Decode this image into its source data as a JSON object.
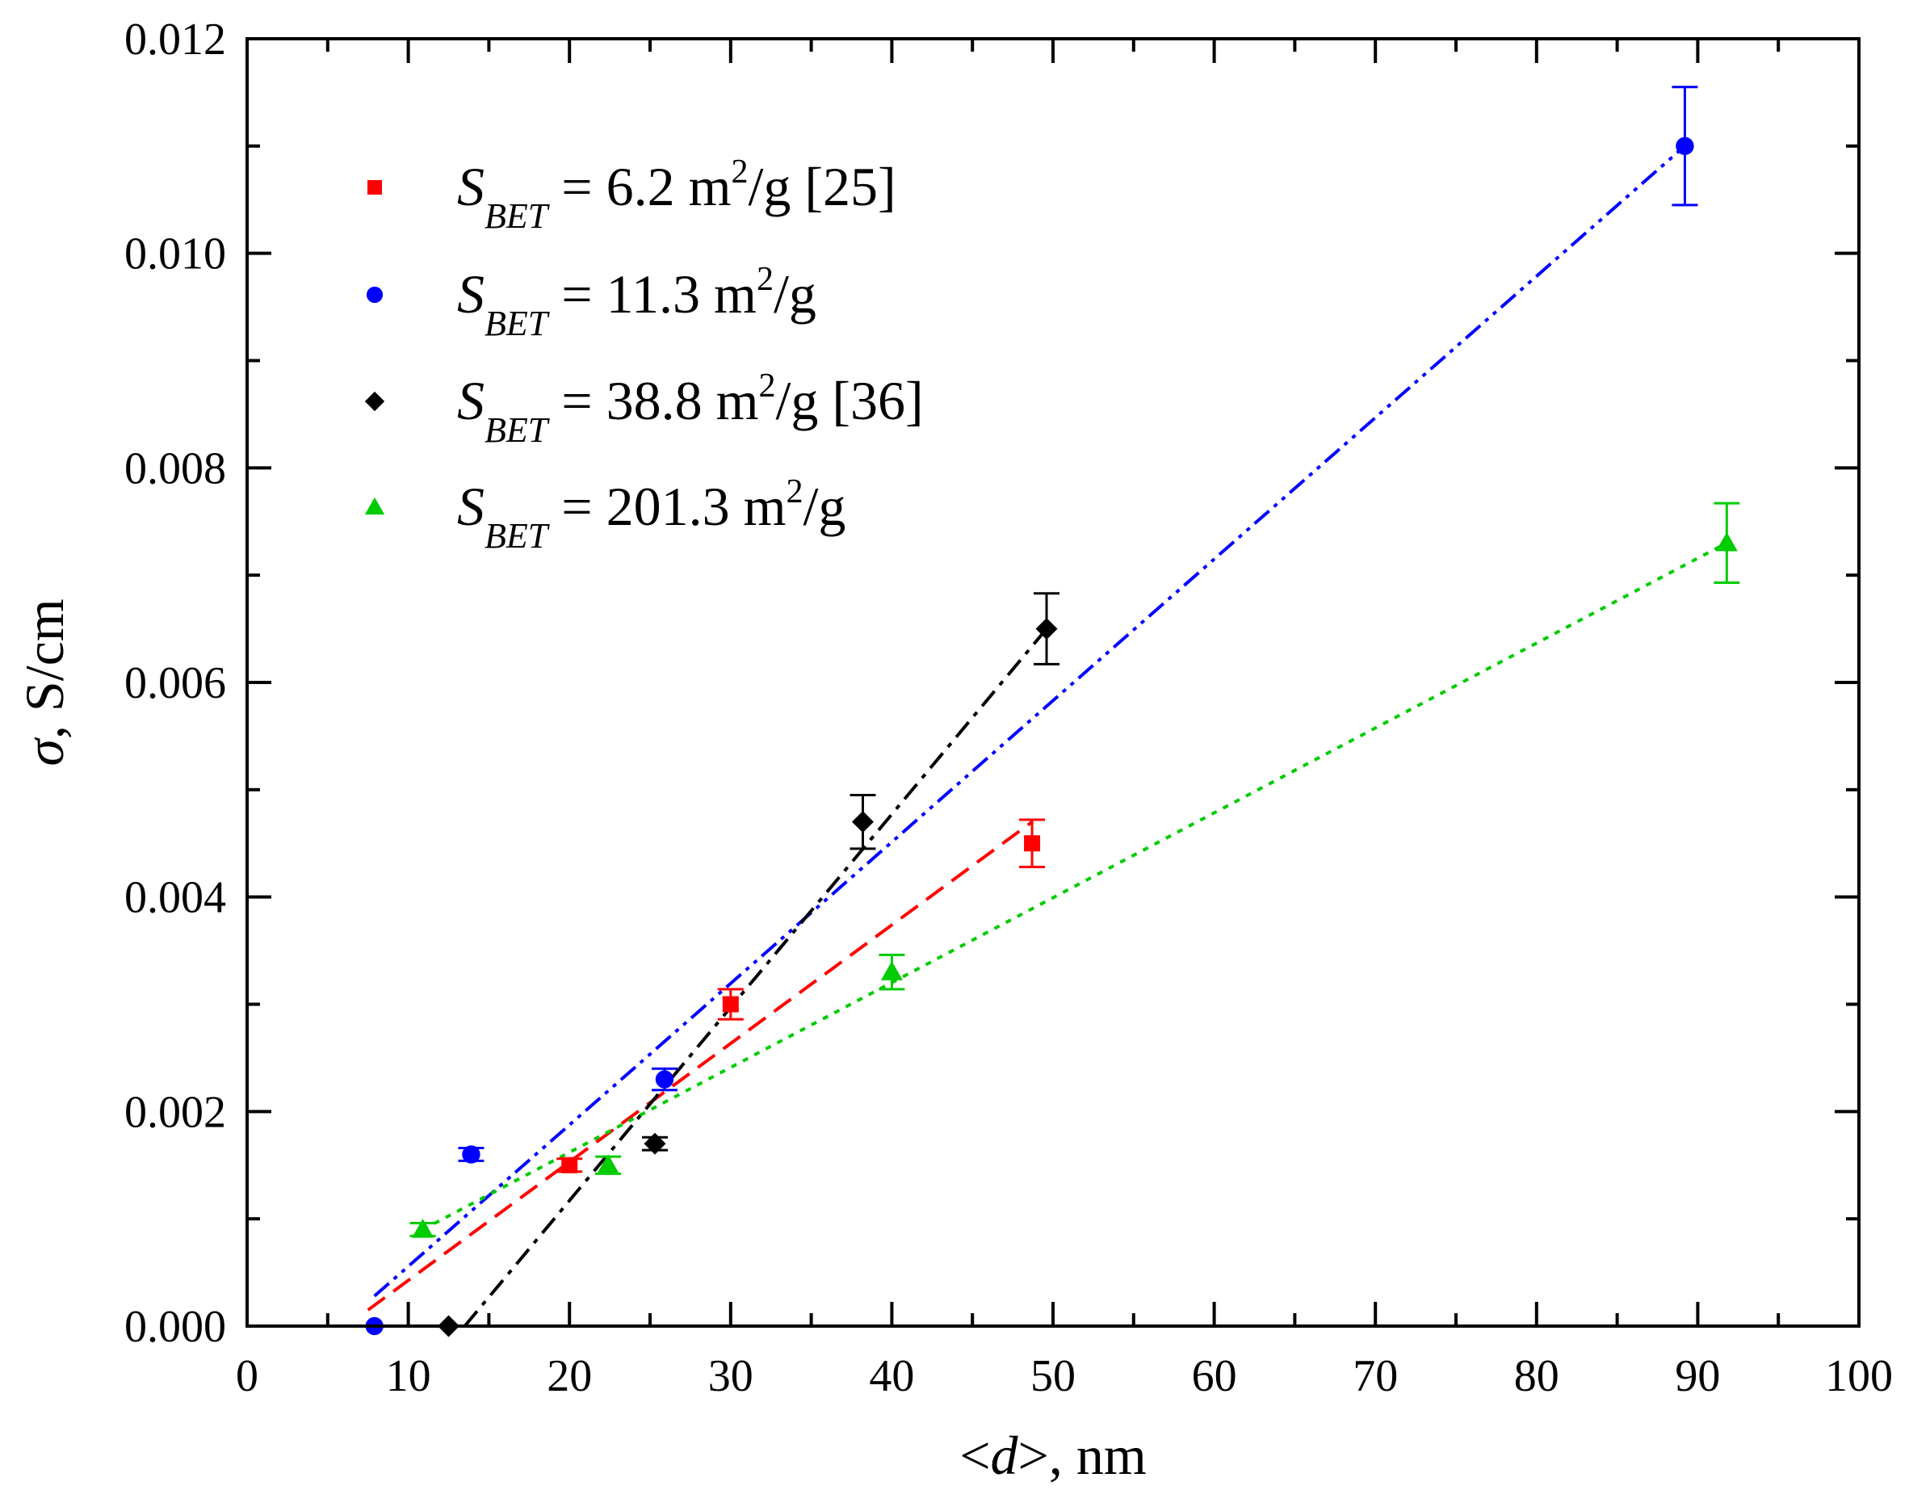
{
  "chart_data": {
    "type": "scatter",
    "title": "",
    "xlabel_prefix": "<",
    "xlabel_var": "d",
    "xlabel_suffix": ">, nm",
    "ylabel_var": "σ",
    "ylabel_unit": ", S/cm",
    "xlim": [
      0,
      100
    ],
    "ylim": [
      0,
      0.012
    ],
    "x_ticks": [
      0,
      10,
      20,
      30,
      40,
      50,
      60,
      70,
      80,
      90,
      100
    ],
    "x_tick_labels": [
      "0",
      "10",
      "20",
      "30",
      "40",
      "50",
      "60",
      "70",
      "80",
      "90",
      "100"
    ],
    "y_ticks": [
      0,
      0.002,
      0.004,
      0.006,
      0.008,
      0.01,
      0.012
    ],
    "y_tick_labels": [
      "0.000",
      "0.002",
      "0.004",
      "0.006",
      "0.008",
      "0.010",
      "0.012"
    ],
    "grid": false,
    "legend_position": "top-left",
    "series": [
      {
        "name": "S_BET = 6.2 m²/g [25]",
        "legend": {
          "var": "S",
          "sub": "BET",
          "pre": " = 6.2 m",
          "sup": "2",
          "post": "/g [25]"
        },
        "color": "#ff0000",
        "marker": "square",
        "line_style": "dashed",
        "x": [
          20,
          30,
          48.7
        ],
        "y": [
          0.0015,
          0.003,
          0.0045
        ],
        "err": [
          6e-05,
          0.00014,
          0.00022
        ],
        "fit": {
          "x": [
            7.5,
            48.7
          ],
          "y": [
            0.00015,
            0.0047
          ]
        }
      },
      {
        "name": "S_BET = 11.3 m²/g",
        "legend": {
          "var": "S",
          "sub": "BET",
          "pre": " = 11.3 m",
          "sup": "2",
          "post": "/g"
        },
        "color": "#0000ff",
        "marker": "circle",
        "line_style": "dash-dot-dot",
        "x": [
          7.9,
          13.9,
          25.9,
          89.2
        ],
        "y": [
          0.0,
          0.0016,
          0.0023,
          0.011
        ],
        "err": [
          0,
          6e-05,
          0.0001,
          0.00055
        ],
        "fit": {
          "x": [
            7.9,
            89.2
          ],
          "y": [
            0.00028,
            0.011
          ]
        }
      },
      {
        "name": "S_BET = 38.8 m²/g [36]",
        "legend": {
          "var": "S",
          "sub": "BET",
          "pre": " = 38.8 m",
          "sup": "2",
          "post": "/g [36]"
        },
        "color": "#000000",
        "marker": "diamond",
        "line_style": "dash-dot",
        "x": [
          12.5,
          25.3,
          38.2,
          49.6
        ],
        "y": [
          0.0,
          0.0017,
          0.0047,
          0.0065
        ],
        "err": [
          0,
          6e-05,
          0.00025,
          0.00033
        ],
        "fit": {
          "x": [
            13.5,
            49.6
          ],
          "y": [
            0.0,
            0.0065
          ]
        }
      },
      {
        "name": "S_BET = 201.3 m²/g",
        "legend": {
          "var": "S",
          "sub": "BET",
          "pre": " = 201.3 m",
          "sup": "2",
          "post": "/g"
        },
        "color": "#00cc00",
        "marker": "triangle",
        "line_style": "dotted",
        "x": [
          10.9,
          22.4,
          40,
          91.8
        ],
        "y": [
          0.0009,
          0.0015,
          0.0033,
          0.0073
        ],
        "err": [
          6e-05,
          8e-05,
          0.00016,
          0.00037
        ],
        "fit": {
          "x": [
            10.9,
            91.8
          ],
          "y": [
            0.0009,
            0.0073
          ]
        }
      }
    ]
  }
}
